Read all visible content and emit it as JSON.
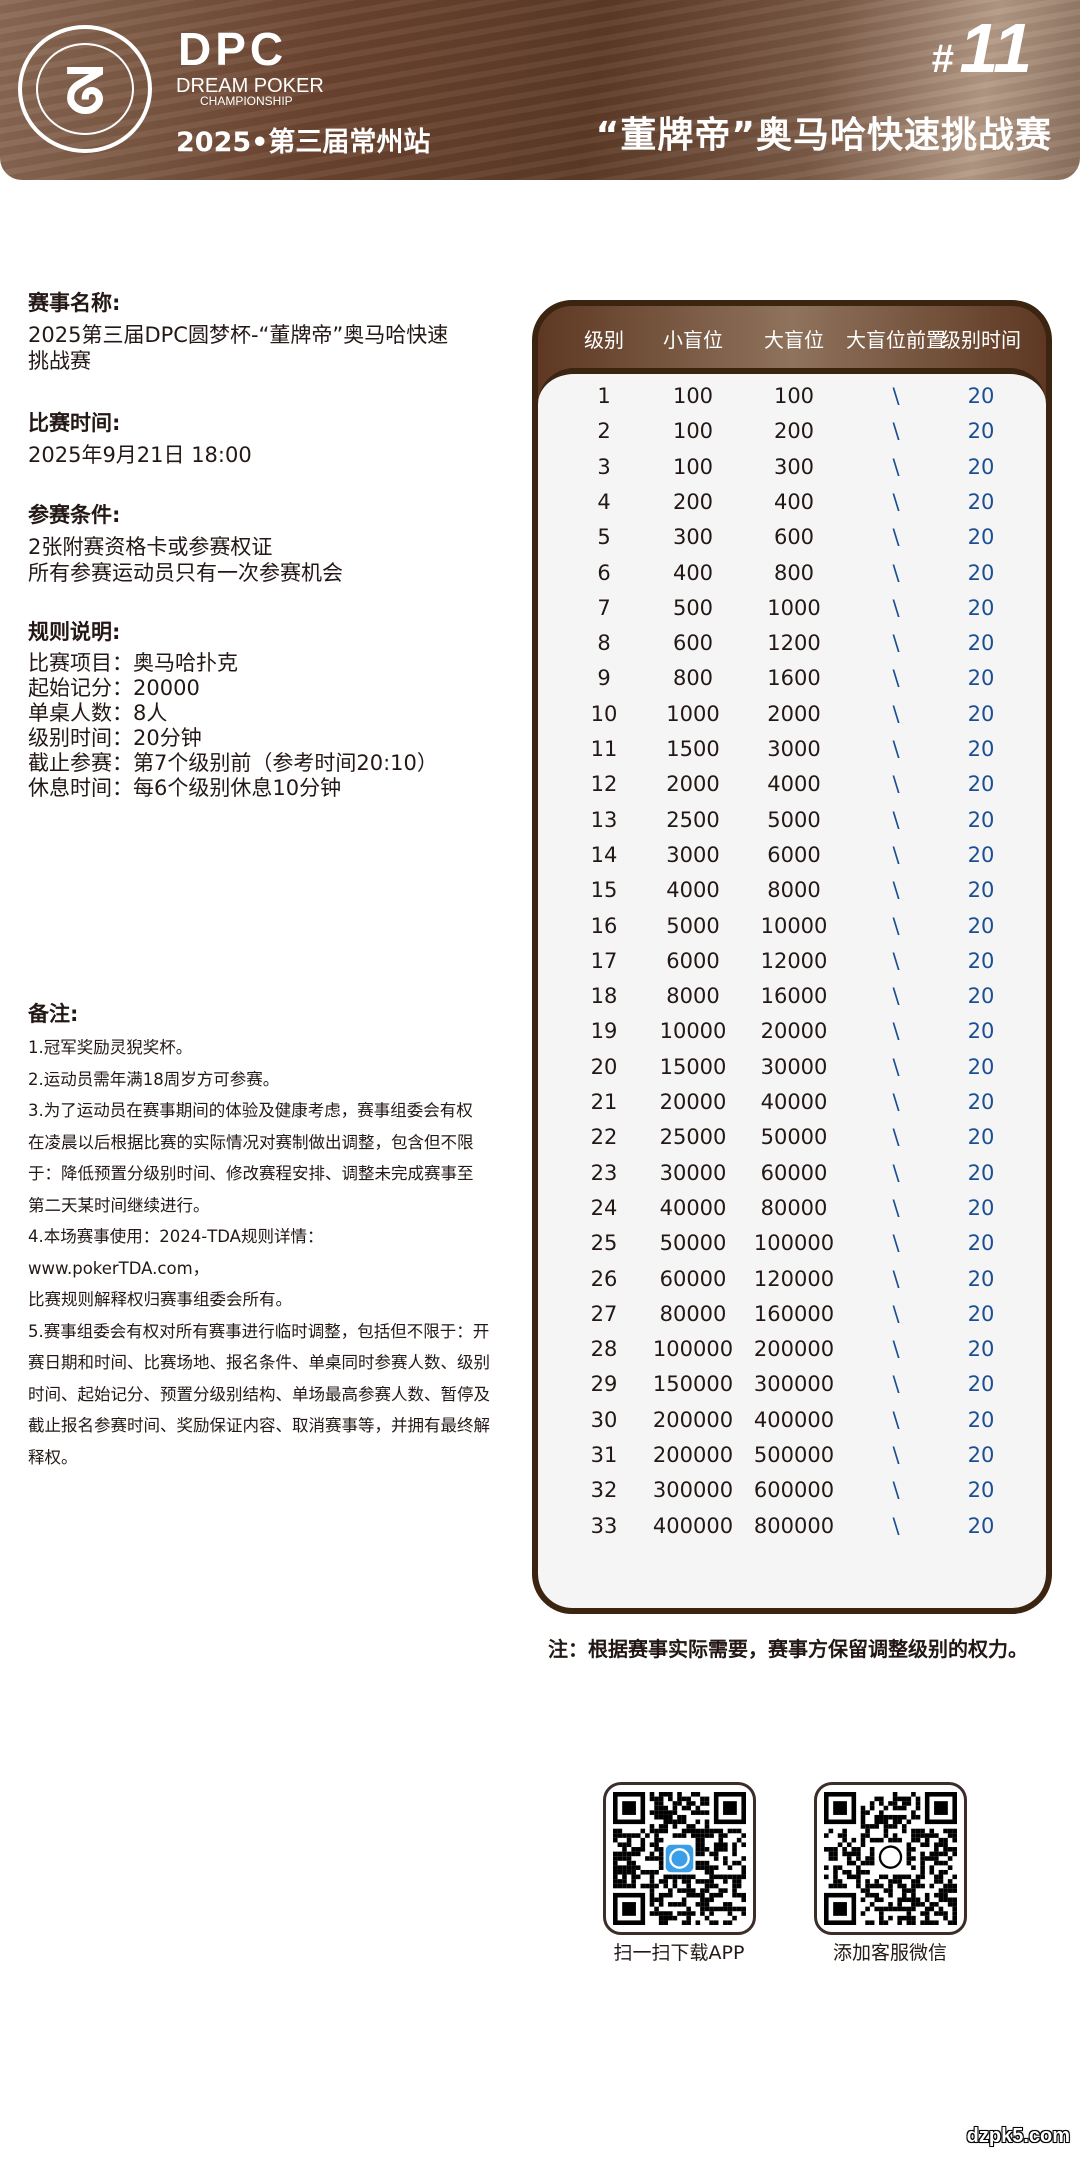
{
  "header": {
    "logo_text": "DPC",
    "brand_line1": "DREAM POKER",
    "brand_line2": "CHAMPIONSHIP",
    "ring_text": "DREAM POKER CHAMPIONSHIP",
    "season": "2025•第三届常州站",
    "event_number_prefix": "#",
    "event_number": "11",
    "event_title": "“董牌帝”奥马哈快速挑战赛",
    "bg_color": "#6b4430"
  },
  "info": {
    "name": {
      "title": "赛事名称:",
      "lines": [
        "2025第三届DPC圆梦杯-“董牌帝”奥马哈快速",
        "挑战赛"
      ]
    },
    "time": {
      "title": "比赛时间:",
      "lines": [
        "2025年9月21日 18:00"
      ]
    },
    "eligibility": {
      "title": "参赛条件:",
      "lines": [
        "2张附赛资格卡或参赛权证",
        "所有参赛运动员只有一次参赛机会"
      ]
    },
    "rules": {
      "title": "规则说明:",
      "lines": [
        "比赛项目：奥马哈扑克",
        "起始记分：20000",
        "单桌人数：8人",
        "级别时间：20分钟",
        "截止参赛：第7个级别前（参考时间20:10）",
        "休息时间：每6个级别休息10分钟"
      ]
    }
  },
  "notes": {
    "title": "备注:",
    "lines": [
      "1.冠军奖励灵猊奖杯。",
      "2.运动员需年满18周岁方可参赛。",
      "3.为了运动员在赛事期间的体验及健康考虑，赛事组委会有权",
      "在凌晨以后根据比赛的实际情况对赛制做出调整，包含但不限",
      "于：降低预置分级别时间、修改赛程安排、调整未完成赛事至",
      "第二天某时间继续进行。",
      "4.本场赛事使用：2024-TDA规则详情：www.pokerTDA.com，",
      "比赛规则解释权归赛事组委会所有。",
      "5.赛事组委会有权对所有赛事进行临时调整，包括但不限于：开",
      "赛日期和时间、比赛场地、报名条件、单桌同时参赛人数、级别",
      "时间、起始记分、预置分级别结构、单场最高参赛人数、暂停及",
      "截止报名参赛时间、奖励保证内容、取消赛事等，并拥有最终解",
      "释权。"
    ]
  },
  "table": {
    "headers": [
      "级别",
      "小盲位",
      "大盲位",
      "大盲位前置",
      "级别时间"
    ],
    "rows": [
      [
        "1",
        "100",
        "100",
        "\\",
        "20"
      ],
      [
        "2",
        "100",
        "200",
        "\\",
        "20"
      ],
      [
        "3",
        "100",
        "300",
        "\\",
        "20"
      ],
      [
        "4",
        "200",
        "400",
        "\\",
        "20"
      ],
      [
        "5",
        "300",
        "600",
        "\\",
        "20"
      ],
      [
        "6",
        "400",
        "800",
        "\\",
        "20"
      ],
      [
        "7",
        "500",
        "1000",
        "\\",
        "20"
      ],
      [
        "8",
        "600",
        "1200",
        "\\",
        "20"
      ],
      [
        "9",
        "800",
        "1600",
        "\\",
        "20"
      ],
      [
        "10",
        "1000",
        "2000",
        "\\",
        "20"
      ],
      [
        "11",
        "1500",
        "3000",
        "\\",
        "20"
      ],
      [
        "12",
        "2000",
        "4000",
        "\\",
        "20"
      ],
      [
        "13",
        "2500",
        "5000",
        "\\",
        "20"
      ],
      [
        "14",
        "3000",
        "6000",
        "\\",
        "20"
      ],
      [
        "15",
        "4000",
        "8000",
        "\\",
        "20"
      ],
      [
        "16",
        "5000",
        "10000",
        "\\",
        "20"
      ],
      [
        "17",
        "6000",
        "12000",
        "\\",
        "20"
      ],
      [
        "18",
        "8000",
        "16000",
        "\\",
        "20"
      ],
      [
        "19",
        "10000",
        "20000",
        "\\",
        "20"
      ],
      [
        "20",
        "15000",
        "30000",
        "\\",
        "20"
      ],
      [
        "21",
        "20000",
        "40000",
        "\\",
        "20"
      ],
      [
        "22",
        "25000",
        "50000",
        "\\",
        "20"
      ],
      [
        "23",
        "30000",
        "60000",
        "\\",
        "20"
      ],
      [
        "24",
        "40000",
        "80000",
        "\\",
        "20"
      ],
      [
        "25",
        "50000",
        "100000",
        "\\",
        "20"
      ],
      [
        "26",
        "60000",
        "120000",
        "\\",
        "20"
      ],
      [
        "27",
        "80000",
        "160000",
        "\\",
        "20"
      ],
      [
        "28",
        "100000",
        "200000",
        "\\",
        "20"
      ],
      [
        "29",
        "150000",
        "300000",
        "\\",
        "20"
      ],
      [
        "30",
        "200000",
        "400000",
        "\\",
        "20"
      ],
      [
        "31",
        "200000",
        "500000",
        "\\",
        "20"
      ],
      [
        "32",
        "300000",
        "600000",
        "\\",
        "20"
      ],
      [
        "33",
        "400000",
        "800000",
        "\\",
        "20"
      ]
    ],
    "border_color": "#3b2410",
    "time_color": "#1c4f91"
  },
  "footnote": "注：根据赛事实际需要，赛事方保留调整级别的权力。",
  "qr": [
    {
      "label": "扫一扫下载APP",
      "center_icon": "app-logo-icon"
    },
    {
      "label": "添加客服微信",
      "center_icon": "wechat-icon"
    }
  ],
  "watermark": "dzpk5.com"
}
